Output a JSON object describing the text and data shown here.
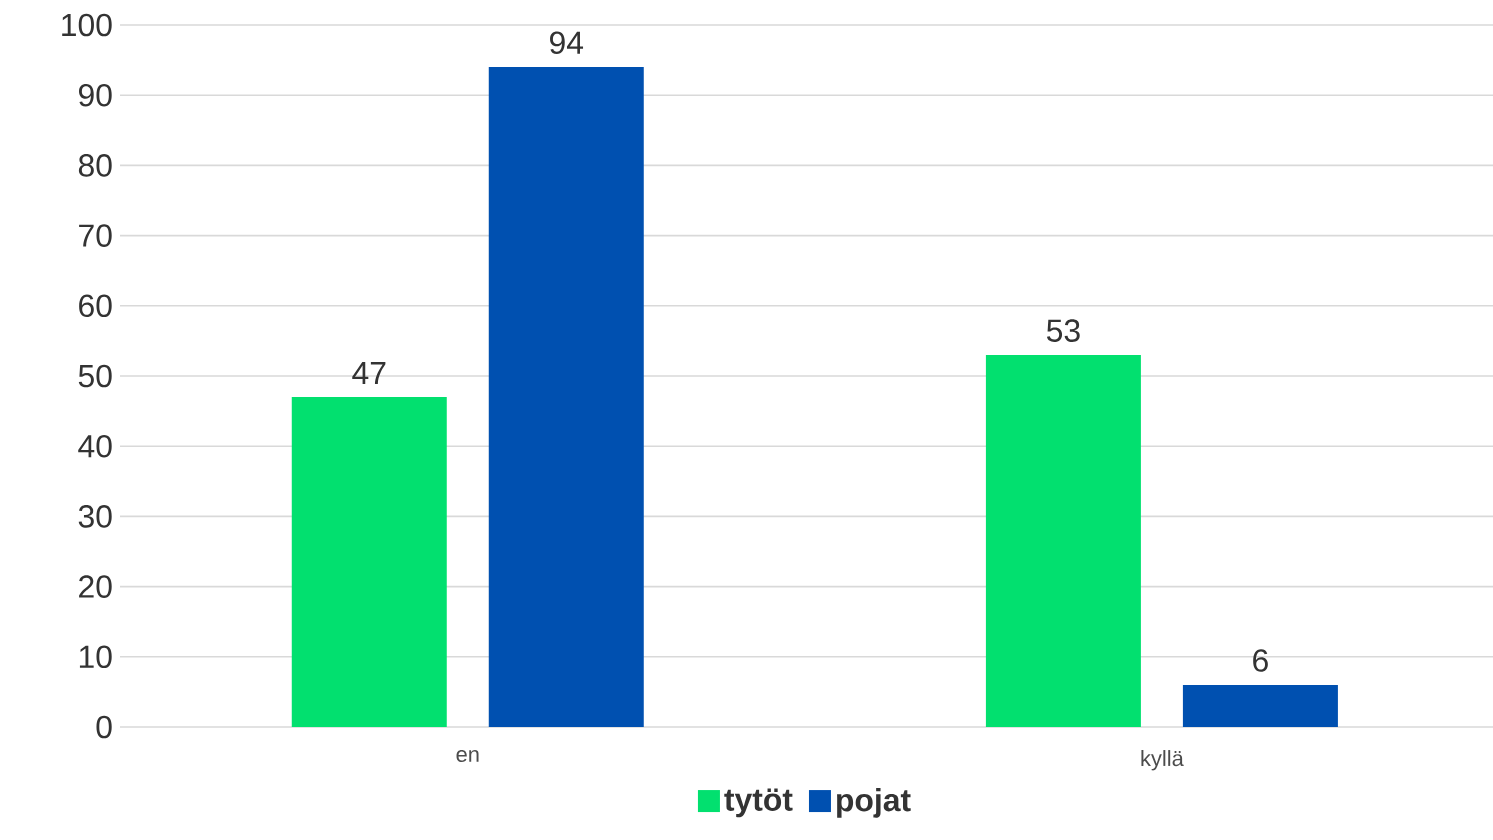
{
  "chart_data": {
    "type": "bar",
    "categories": [
      "en",
      "kyllä"
    ],
    "series": [
      {
        "name": "tytöt",
        "color": "#02e06f",
        "values": [
          47,
          53
        ]
      },
      {
        "name": "pojat",
        "color": "#0050b0",
        "values": [
          94,
          6
        ]
      }
    ],
    "ylim": [
      0,
      100
    ],
    "yticks": [
      0,
      10,
      20,
      30,
      40,
      50,
      60,
      70,
      80,
      90,
      100
    ],
    "grid": "y",
    "legend": "bottom",
    "data_labels": true
  }
}
